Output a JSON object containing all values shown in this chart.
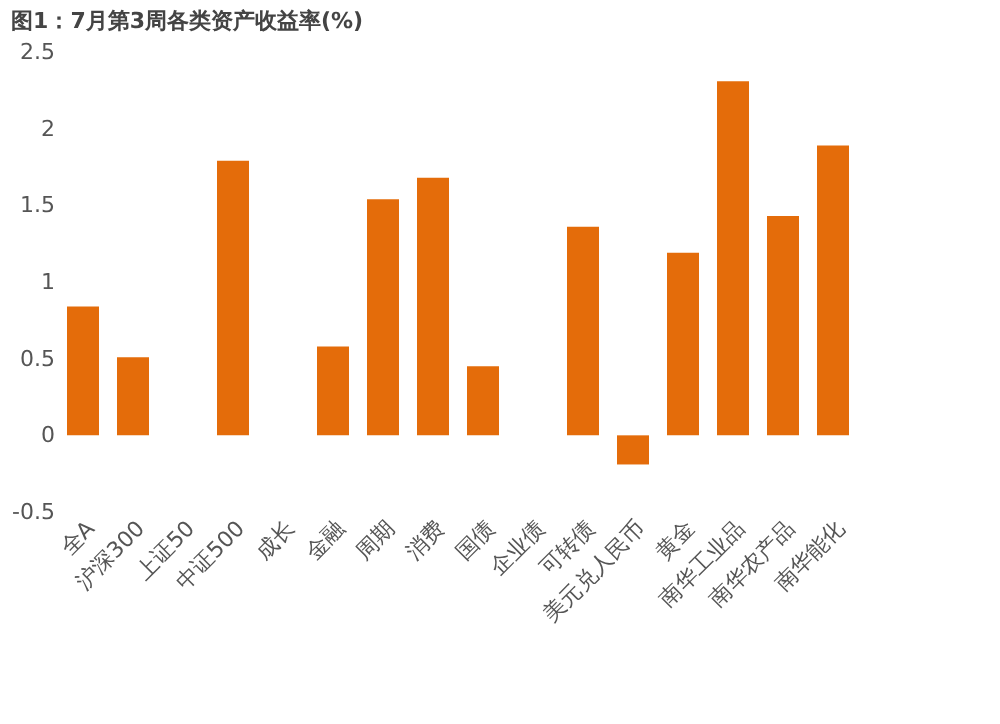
{
  "chart_data": {
    "type": "bar",
    "title": "图1：7月第3周各类资产收益率(%)",
    "categories": [
      "全A",
      "沪深300",
      "上证50",
      "中证500",
      "成长",
      "金融",
      "周期",
      "消费",
      "国债",
      "企业债",
      "可转债",
      "美元兑人民币",
      "黄金",
      "南华工业品",
      "南华农产品",
      "南华能化"
    ],
    "values": [
      0.84,
      0.51,
      null,
      1.79,
      null,
      0.58,
      1.54,
      1.68,
      0.45,
      null,
      1.36,
      -0.19,
      1.19,
      2.31,
      1.43,
      1.89
    ],
    "color": "#e46c0a",
    "ylim": [
      -0.5,
      2.5
    ],
    "yticks": [
      -0.5,
      0,
      0.5,
      1,
      1.5,
      2,
      2.5
    ],
    "grid": false
  }
}
